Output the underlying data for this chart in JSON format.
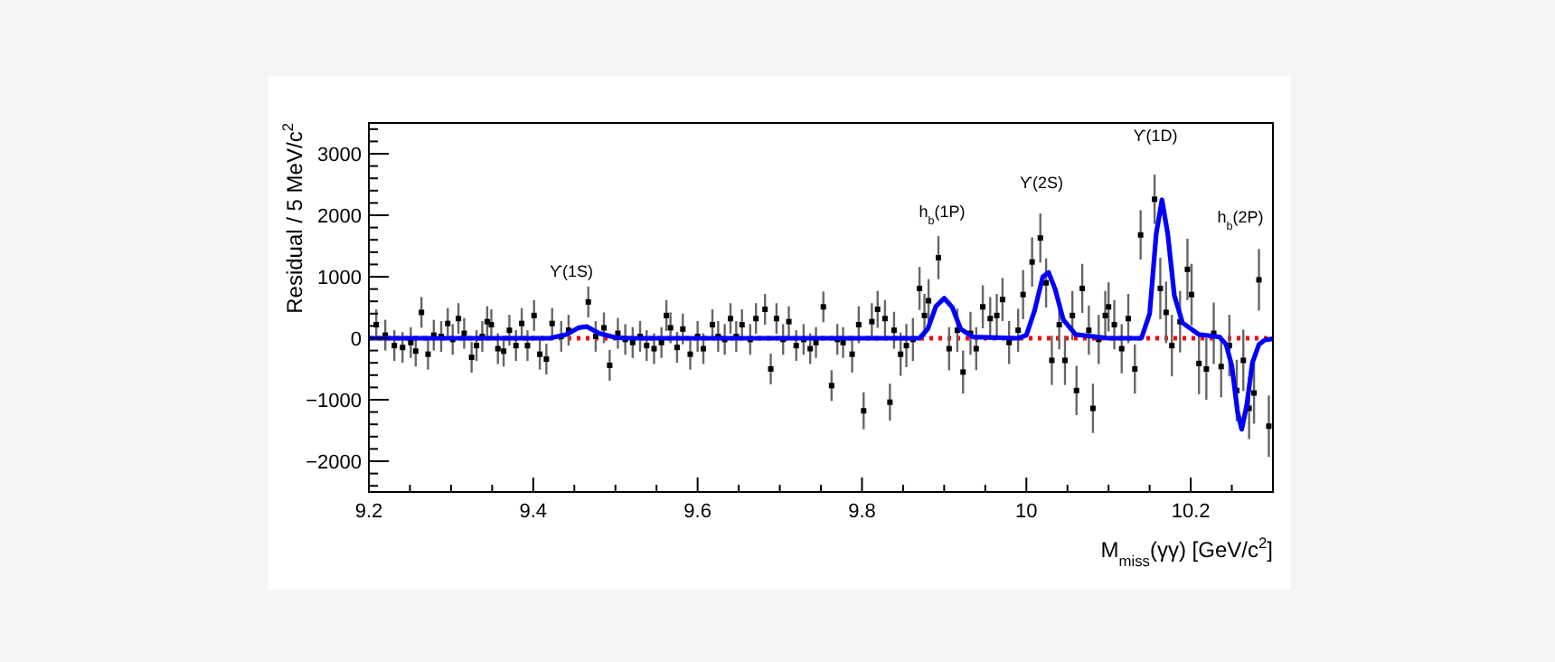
{
  "chart_data": {
    "type": "scatter",
    "xlabel": "M$_{miss}$(γγ) [GeV/c$^{2}$]",
    "ylabel": "Residual / 5 MeV/c$^{2}$",
    "xlim": [
      9.2,
      10.3
    ],
    "ylim": [
      -2500,
      3500
    ],
    "xticks": [
      9.2,
      {
        "value": 9.25,
        "label": null
      },
      {
        "value": 9.3,
        "label": null
      },
      {
        "value": 9.35,
        "label": null
      },
      9.4,
      {
        "value": 9.45,
        "label": null
      },
      {
        "value": 9.5,
        "label": null
      },
      {
        "value": 9.55,
        "label": null
      },
      9.6,
      {
        "value": 9.65,
        "label": null
      },
      {
        "value": 9.7,
        "label": null
      },
      {
        "value": 9.75,
        "label": null
      },
      9.8,
      {
        "value": 9.85,
        "label": null
      },
      {
        "value": 9.9,
        "label": null
      },
      {
        "value": 9.95,
        "label": null
      },
      10,
      {
        "value": 10.05,
        "label": null
      },
      {
        "value": 10.1,
        "label": null
      },
      {
        "value": 10.15,
        "label": null
      },
      10.2,
      {
        "value": 10.25,
        "label": null
      }
    ],
    "yticks": [
      {
        "value": -2400,
        "label": null
      },
      {
        "value": -2200,
        "label": null
      },
      -2000,
      {
        "value": -1800,
        "label": null
      },
      {
        "value": -1600,
        "label": null
      },
      {
        "value": -1400,
        "label": null
      },
      {
        "value": -1200,
        "label": null
      },
      -1000,
      {
        "value": -800,
        "label": null
      },
      {
        "value": -600,
        "label": null
      },
      {
        "value": -400,
        "label": null
      },
      {
        "value": -200,
        "label": null
      },
      0,
      {
        "value": 200,
        "label": null
      },
      {
        "value": 400,
        "label": null
      },
      {
        "value": 600,
        "label": null
      },
      {
        "value": 800,
        "label": null
      },
      1000,
      {
        "value": 1200,
        "label": null
      },
      {
        "value": 1400,
        "label": null
      },
      {
        "value": 1600,
        "label": null
      },
      {
        "value": 1800,
        "label": null
      },
      2000,
      {
        "value": 2200,
        "label": null
      },
      {
        "value": 2400,
        "label": null
      },
      {
        "value": 2600,
        "label": null
      },
      {
        "value": 2800,
        "label": null
      },
      3000,
      {
        "value": 3200,
        "label": null
      },
      {
        "value": 3400,
        "label": null
      }
    ],
    "grid": false,
    "ref_lines": [
      {
        "axis": "y",
        "value": 0,
        "color": "#ff0000",
        "line_style": "dotted"
      }
    ],
    "annotations": [
      "ϒ(1S)",
      "h$_{b}$(1P)",
      "ϒ(2S)",
      "ϒ(1D)",
      "h$_{b}$(2P)"
    ],
    "series": [
      {
        "color": "#000000",
        "marker": "square",
        "x": [
          9.209,
          9.22,
          9.231,
          9.241,
          9.251,
          9.257,
          9.264,
          9.272,
          9.279,
          9.288,
          9.296,
          9.302,
          9.309,
          9.316,
          9.325,
          9.331,
          9.338,
          9.344,
          9.349,
          9.357,
          9.364,
          9.371,
          9.379,
          9.386,
          9.393,
          9.401,
          9.408,
          9.416,
          9.423,
          9.434,
          9.443,
          9.467,
          9.476,
          9.486,
          9.493,
          9.503,
          9.512,
          9.521,
          9.53,
          9.538,
          9.547,
          9.556,
          9.562,
          9.567,
          9.575,
          9.582,
          9.591,
          9.6,
          9.607,
          9.618,
          9.625,
          9.633,
          9.64,
          9.647,
          9.654,
          9.664,
          9.671,
          9.682,
          9.689,
          9.696,
          9.704,
          9.711,
          9.72,
          9.729,
          9.737,
          9.744,
          9.753,
          9.763,
          9.77,
          9.777,
          9.788,
          9.796,
          9.802,
          9.812,
          9.819,
          9.828,
          9.834,
          9.839,
          9.847,
          9.854,
          9.862,
          9.87,
          9.876,
          9.881,
          9.893,
          9.906,
          9.916,
          9.923,
          9.932,
          9.939,
          9.947,
          9.956,
          9.964,
          9.971,
          9.979,
          9.99,
          9.996,
          10.007,
          10.017,
          10.024,
          10.031,
          10.04,
          10.047,
          10.056,
          10.061,
          10.068,
          10.076,
          10.081,
          10.088,
          10.096,
          10.1,
          10.107,
          10.116,
          10.124,
          10.132,
          10.139,
          10.156,
          10.163,
          10.17,
          10.177,
          10.187,
          10.196,
          10.201,
          10.21,
          10.219,
          10.228,
          10.237,
          10.247,
          10.256,
          10.264,
          10.271,
          10.277,
          10.283,
          10.295
        ],
        "values": [
          220,
          50,
          -120,
          -150,
          -70,
          -210,
          420,
          -260,
          50,
          30,
          240,
          -20,
          320,
          80,
          -310,
          -120,
          30,
          270,
          220,
          -170,
          -210,
          130,
          -120,
          240,
          -120,
          370,
          -260,
          -340,
          240,
          30,
          130,
          590,
          30,
          170,
          -440,
          80,
          -20,
          -70,
          30,
          -120,
          -170,
          -70,
          370,
          170,
          -150,
          150,
          -260,
          30,
          -170,
          220,
          30,
          -20,
          320,
          30,
          220,
          -20,
          320,
          470,
          -500,
          320,
          -20,
          270,
          -120,
          -20,
          -170,
          -70,
          510,
          -770,
          -20,
          -70,
          -260,
          220,
          -1180,
          270,
          470,
          320,
          -1040,
          130,
          -260,
          -120,
          -20,
          810,
          370,
          610,
          1310,
          -170,
          130,
          -550,
          80,
          -170,
          510,
          320,
          370,
          630,
          -70,
          130,
          710,
          1240,
          1630,
          900,
          -360,
          220,
          -360,
          370,
          -850,
          810,
          130,
          -1140,
          -20,
          370,
          510,
          220,
          -170,
          320,
          -500,
          1680,
          2260,
          810,
          420,
          -120,
          270,
          1120,
          710,
          -410,
          -500,
          80,
          -460,
          -120,
          -850,
          -360,
          -1140,
          -890,
          950,
          -1430
        ],
        "errors": [
          250,
          250,
          250,
          250,
          250,
          250,
          250,
          250,
          250,
          250,
          250,
          250,
          250,
          250,
          250,
          250,
          250,
          250,
          250,
          250,
          250,
          250,
          250,
          250,
          250,
          250,
          250,
          250,
          250,
          250,
          250,
          250,
          250,
          250,
          250,
          250,
          250,
          250,
          250,
          250,
          250,
          250,
          250,
          250,
          250,
          250,
          250,
          250,
          250,
          250,
          250,
          250,
          250,
          250,
          250,
          250,
          250,
          250,
          250,
          250,
          250,
          250,
          250,
          250,
          250,
          250,
          250,
          250,
          250,
          250,
          300,
          300,
          300,
          300,
          300,
          300,
          300,
          300,
          350,
          350,
          350,
          350,
          350,
          350,
          350,
          350,
          350,
          350,
          350,
          350,
          350,
          350,
          350,
          350,
          350,
          350,
          400,
          400,
          400,
          400,
          400,
          400,
          400,
          400,
          400,
          400,
          400,
          400,
          400,
          400,
          400,
          400,
          400,
          400,
          400,
          400,
          400,
          500,
          500,
          500,
          500,
          500,
          500,
          500,
          500,
          500,
          500,
          500,
          500,
          500,
          500,
          500,
          500,
          500
        ]
      },
      {
        "type": "line",
        "color": "#0000ff",
        "line_style": "solid",
        "x": [
          9.2,
          9.42,
          9.44,
          9.455,
          9.465,
          9.48,
          9.5,
          9.52,
          9.87,
          9.88,
          9.89,
          9.9,
          9.91,
          9.92,
          9.935,
          9.99,
          10.0,
          10.01,
          10.02,
          10.027,
          10.035,
          10.045,
          10.06,
          10.1,
          10.14,
          10.15,
          10.158,
          10.165,
          10.172,
          10.18,
          10.19,
          10.21,
          10.235,
          10.243,
          10.25,
          10.257,
          10.262,
          10.268,
          10.275,
          10.283,
          10.29,
          10.3
        ],
        "values": [
          0,
          0,
          60,
          170,
          190,
          80,
          10,
          0,
          0,
          150,
          520,
          650,
          500,
          150,
          20,
          0,
          50,
          450,
          1000,
          1070,
          800,
          300,
          60,
          0,
          0,
          400,
          1700,
          2250,
          1700,
          700,
          250,
          60,
          20,
          -100,
          -450,
          -1200,
          -1480,
          -1100,
          -400,
          -100,
          -30,
          -10
        ]
      }
    ]
  }
}
